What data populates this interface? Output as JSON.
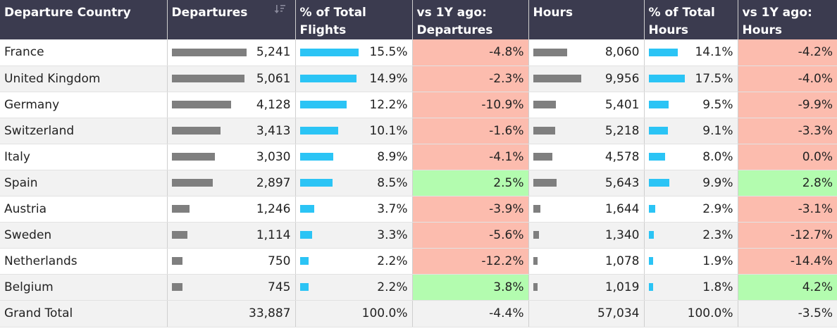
{
  "headers": [
    "Departure Country",
    "Departures",
    "% of Total Flights",
    "vs 1Y ago: Departures",
    "Hours",
    "% of Total Hours",
    "vs 1Y ago: Hours"
  ],
  "colors": {
    "header_bg": "#3b3b4f",
    "negative": "#fcbcae",
    "positive": "#b3fcaf",
    "bar_grey": "#7f7f7f",
    "bar_blue": "#2bc4f5"
  },
  "rows": [
    {
      "country": "France",
      "departures": "5,241",
      "dep_share": 1.0,
      "pct_flights": "15.5%",
      "pct_flights_share": 1.0,
      "vs_dep": "-4.8%",
      "vs_dep_sign": "neg",
      "hours": "8,060",
      "hours_share": 0.7,
      "pct_hours": "14.1%",
      "pct_hours_share": 0.8,
      "vs_hours": "-4.2%",
      "vs_hours_sign": "neg"
    },
    {
      "country": "United Kingdom",
      "departures": "5,061",
      "dep_share": 0.97,
      "pct_flights": "14.9%",
      "pct_flights_share": 0.96,
      "vs_dep": "-2.3%",
      "vs_dep_sign": "neg",
      "hours": "9,956",
      "hours_share": 1.0,
      "pct_hours": "17.5%",
      "pct_hours_share": 1.0,
      "vs_hours": "-4.0%",
      "vs_hours_sign": "neg"
    },
    {
      "country": "Germany",
      "departures": "4,128",
      "dep_share": 0.79,
      "pct_flights": "12.2%",
      "pct_flights_share": 0.79,
      "vs_dep": "-10.9%",
      "vs_dep_sign": "neg",
      "hours": "5,401",
      "hours_share": 0.47,
      "pct_hours": "9.5%",
      "pct_hours_share": 0.54,
      "vs_hours": "-9.9%",
      "vs_hours_sign": "neg"
    },
    {
      "country": "Switzerland",
      "departures": "3,413",
      "dep_share": 0.65,
      "pct_flights": "10.1%",
      "pct_flights_share": 0.65,
      "vs_dep": "-1.6%",
      "vs_dep_sign": "neg",
      "hours": "5,218",
      "hours_share": 0.45,
      "pct_hours": "9.1%",
      "pct_hours_share": 0.52,
      "vs_hours": "-3.3%",
      "vs_hours_sign": "neg"
    },
    {
      "country": "Italy",
      "departures": "3,030",
      "dep_share": 0.58,
      "pct_flights": "8.9%",
      "pct_flights_share": 0.57,
      "vs_dep": "-4.1%",
      "vs_dep_sign": "neg",
      "hours": "4,578",
      "hours_share": 0.4,
      "pct_hours": "8.0%",
      "pct_hours_share": 0.46,
      "vs_hours": "0.0%",
      "vs_hours_sign": "neg"
    },
    {
      "country": "Spain",
      "departures": "2,897",
      "dep_share": 0.55,
      "pct_flights": "8.5%",
      "pct_flights_share": 0.55,
      "vs_dep": "2.5%",
      "vs_dep_sign": "pos",
      "hours": "5,643",
      "hours_share": 0.49,
      "pct_hours": "9.9%",
      "pct_hours_share": 0.56,
      "vs_hours": "2.8%",
      "vs_hours_sign": "pos"
    },
    {
      "country": "Austria",
      "departures": "1,246",
      "dep_share": 0.24,
      "pct_flights": "3.7%",
      "pct_flights_share": 0.24,
      "vs_dep": "-3.9%",
      "vs_dep_sign": "neg",
      "hours": "1,644",
      "hours_share": 0.14,
      "pct_hours": "2.9%",
      "pct_hours_share": 0.17,
      "vs_hours": "-3.1%",
      "vs_hours_sign": "neg"
    },
    {
      "country": "Sweden",
      "departures": "1,114",
      "dep_share": 0.21,
      "pct_flights": "3.3%",
      "pct_flights_share": 0.21,
      "vs_dep": "-5.6%",
      "vs_dep_sign": "neg",
      "hours": "1,340",
      "hours_share": 0.12,
      "pct_hours": "2.3%",
      "pct_hours_share": 0.13,
      "vs_hours": "-12.7%",
      "vs_hours_sign": "neg"
    },
    {
      "country": "Netherlands",
      "departures": "750",
      "dep_share": 0.14,
      "pct_flights": "2.2%",
      "pct_flights_share": 0.14,
      "vs_dep": "-12.2%",
      "vs_dep_sign": "neg",
      "hours": "1,078",
      "hours_share": 0.09,
      "pct_hours": "1.9%",
      "pct_hours_share": 0.11,
      "vs_hours": "-14.4%",
      "vs_hours_sign": "neg"
    },
    {
      "country": "Belgium",
      "departures": "745",
      "dep_share": 0.14,
      "pct_flights": "2.2%",
      "pct_flights_share": 0.14,
      "vs_dep": "3.8%",
      "vs_dep_sign": "pos",
      "hours": "1,019",
      "hours_share": 0.09,
      "pct_hours": "1.8%",
      "pct_hours_share": 0.1,
      "vs_hours": "4.2%",
      "vs_hours_sign": "pos"
    }
  ],
  "total": {
    "label": "Grand Total",
    "departures": "33,887",
    "pct_flights": "100.0%",
    "vs_dep": "-4.4%",
    "hours": "57,034",
    "pct_hours": "100.0%",
    "vs_hours": "-3.5%"
  }
}
